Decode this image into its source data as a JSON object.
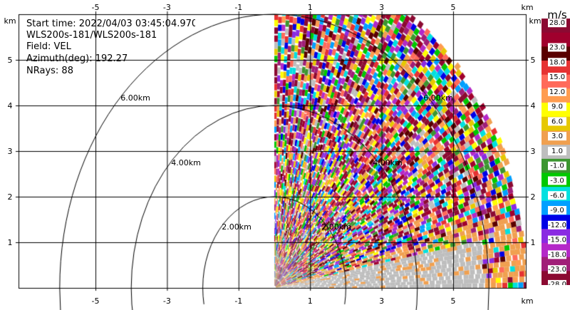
{
  "info": {
    "start_time": "Start time: 2022/04/03 03:45:04.970",
    "instrument": "WLS200s-181/WLS200s-181",
    "field": "Field: VEL",
    "azimuth": "Azimuth(deg): 192.27",
    "nrays": "NRays: 88"
  },
  "axes": {
    "x_unit": "km",
    "y_unit": "km",
    "x_ticks": [
      "-5",
      "-3",
      "-1",
      "1",
      "3",
      "5"
    ],
    "y_ticks": [
      "1",
      "2",
      "3",
      "4",
      "5"
    ],
    "range_rings": [
      {
        "label": "2.00km"
      },
      {
        "label": "4.00km"
      },
      {
        "label": "6.00km"
      }
    ]
  },
  "colorbar": {
    "unit": "m/s",
    "ticks": [
      "28.0",
      "23.0",
      "18.0",
      "15.0",
      "12.0",
      "9.0",
      "6.0",
      "3.0",
      "1.0",
      "-1.0",
      "-3.0",
      "-6.0",
      "-9.0",
      "-12.0",
      "-15.0",
      "-18.0",
      "-23.0",
      "-28.0"
    ],
    "colors": [
      "#8b0a32",
      "#a0002d",
      "#5a0000",
      "#e63232",
      "#ff6a5a",
      "#ff9c50",
      "#ffff00",
      "#e6c800",
      "#f0a050",
      "#bebebe",
      "#3c9630",
      "#00c800",
      "#00e0e0",
      "#00a0ff",
      "#0000e6",
      "#8a2be2",
      "#b428c8",
      "#a01e78",
      "#8b0a32"
    ]
  }
}
